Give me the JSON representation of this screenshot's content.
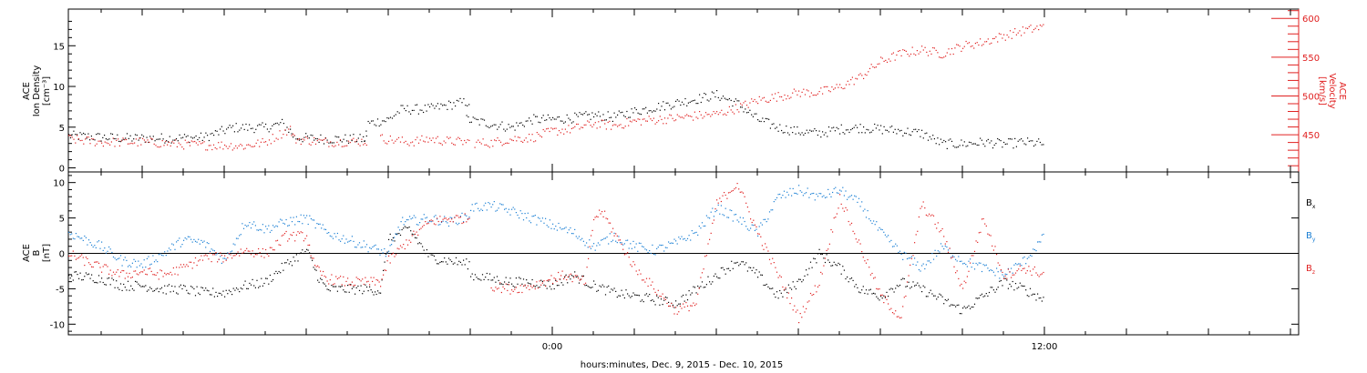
{
  "chart_data": [
    {
      "type": "scatter",
      "panel": "plasma",
      "ylabel_left": [
        "ACE",
        "Ion Density",
        "[cm⁻³]"
      ],
      "ylabel_right": [
        "ACE",
        "Velocity",
        "[km/s]"
      ],
      "ylim_left": [
        -0.5,
        19.5
      ],
      "ylim_right": [
        402,
        612
      ],
      "yticks_left": [
        0,
        5,
        10,
        15
      ],
      "yticks_right": [
        450,
        500,
        550,
        600
      ],
      "xlim_hours": [
        -11.8,
        18.2
      ],
      "series": [
        {
          "axis": "left",
          "color": "#000000",
          "points": [
            [
              -11.8,
              4.0
            ],
            [
              -10.5,
              3.7
            ],
            [
              -9.5,
              3.7
            ],
            [
              -8.5,
              3.8
            ],
            [
              -7.8,
              5.0
            ],
            [
              -7.0,
              5.0
            ],
            [
              -6.6,
              5.5
            ],
            [
              -6.4,
              4.6
            ],
            [
              -6.3,
              3.8
            ],
            [
              -5.5,
              3.6
            ],
            [
              -4.5,
              3.6
            ],
            [
              -4.6,
              3.6
            ],
            [
              -4.5,
              5.5
            ],
            [
              -4.0,
              6.0
            ],
            [
              -3.7,
              7.2
            ],
            [
              -3.0,
              7.3
            ],
            [
              -2.3,
              8.0
            ],
            [
              -2.0,
              8.2
            ],
            [
              -1.8,
              null
            ],
            [
              -2.1,
              6.0
            ],
            [
              -1.0,
              5.0
            ],
            [
              -0.5,
              6.0
            ],
            [
              0.0,
              6.0
            ],
            [
              0.5,
              6.2
            ],
            [
              1.0,
              6.5
            ],
            [
              1.5,
              6.3
            ],
            [
              2.0,
              7.0
            ],
            [
              2.5,
              7.5
            ],
            [
              3.0,
              8.0
            ],
            [
              3.5,
              8.5
            ],
            [
              4.0,
              9.0
            ],
            [
              4.5,
              8.0
            ],
            [
              5.0,
              6.0
            ],
            [
              5.5,
              5.0
            ],
            [
              6.0,
              4.5
            ],
            [
              6.5,
              4.3
            ],
            [
              7.0,
              4.8
            ],
            [
              7.5,
              5.0
            ],
            [
              8.0,
              4.8
            ],
            [
              8.5,
              4.6
            ],
            [
              9.0,
              4.3
            ],
            [
              9.5,
              3.0
            ],
            [
              10.0,
              3.0
            ],
            [
              10.5,
              3.2
            ],
            [
              11.0,
              3.0
            ],
            [
              11.5,
              3.2
            ],
            [
              12.0,
              3.0
            ]
          ]
        },
        {
          "axis": "right",
          "color": "#e02020",
          "points": [
            [
              -11.8,
              445
            ],
            [
              -11.0,
              441
            ],
            [
              -10.0,
              441
            ],
            [
              -9.0,
              438
            ],
            [
              -8.5,
              437
            ],
            [
              -8.0,
              437
            ],
            [
              -7.5,
              436
            ],
            [
              -7.0,
              441
            ],
            [
              -6.7,
              450
            ],
            [
              -6.4,
              458
            ],
            [
              -6.3,
              445
            ],
            [
              -5.5,
              441
            ],
            [
              -4.5,
              442
            ],
            [
              -4.4,
              null
            ],
            [
              -4.2,
              446
            ],
            [
              -3.8,
              443
            ],
            [
              -3.5,
              441
            ],
            [
              -3.0,
              445
            ],
            [
              -2.5,
              442
            ],
            [
              -2.0,
              441
            ],
            [
              -1.8,
              null
            ],
            [
              -1.9,
              440
            ],
            [
              -1.5,
              440
            ],
            [
              -1.0,
              445
            ],
            [
              -0.5,
              447
            ],
            [
              0.0,
              455
            ],
            [
              0.5,
              458
            ],
            [
              1.0,
              465
            ],
            [
              1.5,
              462
            ],
            [
              2.0,
              468
            ],
            [
              2.5,
              470
            ],
            [
              3.0,
              472
            ],
            [
              3.5,
              475
            ],
            [
              4.0,
              477
            ],
            [
              4.5,
              485
            ],
            [
              5.0,
              495
            ],
            [
              5.5,
              500
            ],
            [
              6.0,
              505
            ],
            [
              6.5,
              505
            ],
            [
              7.0,
              512
            ],
            [
              7.5,
              525
            ],
            [
              8.0,
              545
            ],
            [
              8.5,
              555
            ],
            [
              9.0,
              560
            ],
            [
              9.5,
              555
            ],
            [
              10.0,
              565
            ],
            [
              10.5,
              570
            ],
            [
              11.0,
              578
            ],
            [
              11.5,
              585
            ],
            [
              12.0,
              590
            ]
          ]
        }
      ]
    },
    {
      "type": "scatter",
      "panel": "magnetic",
      "ylabel_left": [
        "ACE",
        "B",
        "[nT]"
      ],
      "ylim": [
        -11.5,
        11.5
      ],
      "yticks": [
        -10,
        -5,
        0,
        5,
        10
      ],
      "xlim_hours": [
        -11.8,
        18.2
      ],
      "legend": [
        {
          "label": "B",
          "sub": "x",
          "color": "#000000"
        },
        {
          "label": "B",
          "sub": "y",
          "color": "#1a7fd4"
        },
        {
          "label": "B",
          "sub": "z",
          "color": "#e02020"
        }
      ],
      "series": [
        {
          "name": "Bx",
          "color": "#000000",
          "points": [
            [
              -11.8,
              -3.0
            ],
            [
              -11.0,
              -3.5
            ],
            [
              -10.5,
              -4.5
            ],
            [
              -10.0,
              -4.5
            ],
            [
              -9.5,
              -5.0
            ],
            [
              -9.0,
              -5.0
            ],
            [
              -8.5,
              -5.5
            ],
            [
              -8.0,
              -5.5
            ],
            [
              -7.5,
              -4.5
            ],
            [
              -7.0,
              -4.0
            ],
            [
              -6.5,
              -1.5
            ],
            [
              -6.0,
              0.5
            ],
            [
              -5.7,
              -3.5
            ],
            [
              -5.5,
              -5.0
            ],
            [
              -5.0,
              -5.0
            ],
            [
              -4.5,
              -5.0
            ],
            [
              -4.2,
              -5.2
            ],
            [
              -4.0,
              2.0
            ],
            [
              -3.5,
              3.5
            ],
            [
              -3.0,
              -0.5
            ],
            [
              -2.5,
              -1.0
            ],
            [
              -2.0,
              -1.5
            ],
            [
              -1.8,
              null
            ],
            [
              -2.0,
              -3.0
            ],
            [
              -1.5,
              -3.5
            ],
            [
              -1.0,
              -4.0
            ],
            [
              -0.5,
              -4.0
            ],
            [
              0.0,
              -4.5
            ],
            [
              0.5,
              -3.0
            ],
            [
              1.0,
              -4.5
            ],
            [
              1.5,
              -5.5
            ],
            [
              2.0,
              -6.0
            ],
            [
              2.5,
              -6.5
            ],
            [
              3.0,
              -7.0
            ],
            [
              3.5,
              -5.0
            ],
            [
              4.0,
              -3.0
            ],
            [
              4.5,
              -1.0
            ],
            [
              5.0,
              -3.0
            ],
            [
              5.5,
              -6.0
            ],
            [
              6.0,
              -4.0
            ],
            [
              6.5,
              0.0
            ],
            [
              7.0,
              -2.0
            ],
            [
              7.5,
              -5.0
            ],
            [
              8.0,
              -6.0
            ],
            [
              8.5,
              -4.0
            ],
            [
              9.0,
              -5.0
            ],
            [
              9.5,
              -6.5
            ],
            [
              10.0,
              -8.0
            ],
            [
              10.5,
              -6.0
            ],
            [
              11.0,
              -4.0
            ],
            [
              11.5,
              -5.0
            ],
            [
              12.0,
              -6.5
            ]
          ]
        },
        {
          "name": "By",
          "color": "#1a7fd4",
          "points": [
            [
              -11.8,
              3.0
            ],
            [
              -11.0,
              1.0
            ],
            [
              -10.5,
              -1.0
            ],
            [
              -10.0,
              -1.5
            ],
            [
              -9.5,
              0.0
            ],
            [
              -9.0,
              2.0
            ],
            [
              -8.5,
              1.5
            ],
            [
              -8.0,
              -1.0
            ],
            [
              -7.5,
              4.5
            ],
            [
              -7.0,
              3.5
            ],
            [
              -6.5,
              4.5
            ],
            [
              -6.0,
              5.0
            ],
            [
              -5.5,
              3.0
            ],
            [
              -5.0,
              2.0
            ],
            [
              -4.5,
              1.0
            ],
            [
              -4.0,
              0.0
            ],
            [
              -3.7,
              4.5
            ],
            [
              -3.0,
              5.0
            ],
            [
              -2.5,
              4.5
            ],
            [
              -2.0,
              5.5
            ],
            [
              -1.8,
              null
            ],
            [
              -2.0,
              6.5
            ],
            [
              -1.5,
              6.8
            ],
            [
              -1.0,
              6.0
            ],
            [
              -0.5,
              5.0
            ],
            [
              0.0,
              4.0
            ],
            [
              0.5,
              3.0
            ],
            [
              1.0,
              1.0
            ],
            [
              1.5,
              2.5
            ],
            [
              2.0,
              1.0
            ],
            [
              2.5,
              0.5
            ],
            [
              3.0,
              1.5
            ],
            [
              3.5,
              3.0
            ],
            [
              4.0,
              6.5
            ],
            [
              4.5,
              5.0
            ],
            [
              5.0,
              3.0
            ],
            [
              5.5,
              8.0
            ],
            [
              6.0,
              9.0
            ],
            [
              6.5,
              8.0
            ],
            [
              7.0,
              9.0
            ],
            [
              7.5,
              7.0
            ],
            [
              8.0,
              3.0
            ],
            [
              8.5,
              0.0
            ],
            [
              9.0,
              -2.0
            ],
            [
              9.5,
              1.0
            ],
            [
              10.0,
              -1.0
            ],
            [
              10.5,
              -2.0
            ],
            [
              11.0,
              -3.0
            ],
            [
              11.5,
              -1.0
            ],
            [
              12.0,
              2.5
            ]
          ]
        },
        {
          "name": "Bz",
          "color": "#e02020",
          "points": [
            [
              -11.8,
              0.0
            ],
            [
              -11.0,
              -2.0
            ],
            [
              -10.5,
              -3.0
            ],
            [
              -10.0,
              -2.5
            ],
            [
              -9.5,
              -3.0
            ],
            [
              -9.0,
              -2.0
            ],
            [
              -8.5,
              -0.5
            ],
            [
              -8.0,
              -0.5
            ],
            [
              -7.5,
              0.5
            ],
            [
              -7.0,
              0.0
            ],
            [
              -6.5,
              2.5
            ],
            [
              -6.0,
              2.5
            ],
            [
              -5.8,
              -2.0
            ],
            [
              -5.5,
              -3.5
            ],
            [
              -5.0,
              -4.0
            ],
            [
              -4.5,
              -4.0
            ],
            [
              -4.2,
              -4.0
            ],
            [
              -4.0,
              -1.0
            ],
            [
              -3.5,
              2.0
            ],
            [
              -3.0,
              4.5
            ],
            [
              -2.5,
              5.0
            ],
            [
              -2.0,
              5.0
            ],
            [
              -1.8,
              null
            ],
            [
              -1.5,
              -4.5
            ],
            [
              -1.0,
              -5.0
            ],
            [
              -0.5,
              -4.5
            ],
            [
              0.0,
              -3.5
            ],
            [
              0.3,
              -3.0
            ],
            [
              0.8,
              -4.0
            ],
            [
              1.0,
              5.0
            ],
            [
              1.2,
              6.0
            ],
            [
              1.5,
              3.0
            ],
            [
              2.0,
              -2.0
            ],
            [
              2.5,
              -5.0
            ],
            [
              3.0,
              -8.0
            ],
            [
              3.5,
              -7.0
            ],
            [
              4.0,
              7.0
            ],
            [
              4.5,
              10.0
            ],
            [
              5.0,
              3.0
            ],
            [
              5.5,
              -3.0
            ],
            [
              6.0,
              -9.0
            ],
            [
              6.5,
              -4.0
            ],
            [
              7.0,
              8.0
            ],
            [
              7.5,
              1.0
            ],
            [
              8.0,
              -6.0
            ],
            [
              8.5,
              -9.0
            ],
            [
              9.0,
              7.0
            ],
            [
              9.5,
              3.0
            ],
            [
              10.0,
              -5.0
            ],
            [
              10.5,
              5.0
            ],
            [
              11.0,
              -3.0
            ],
            [
              11.5,
              -2.0
            ],
            [
              12.0,
              -3.0
            ]
          ]
        }
      ]
    }
  ],
  "x_axis": {
    "tick_labels": [
      {
        "hour": 0,
        "label": "0:00"
      },
      {
        "hour": 12,
        "label": "12:00"
      }
    ],
    "xlabel": "hours:minutes, Dec.  9, 2015 - Dec. 10, 2015"
  },
  "colors": {
    "black": "#000000",
    "red": "#e02020",
    "blue": "#1a7fd4"
  }
}
